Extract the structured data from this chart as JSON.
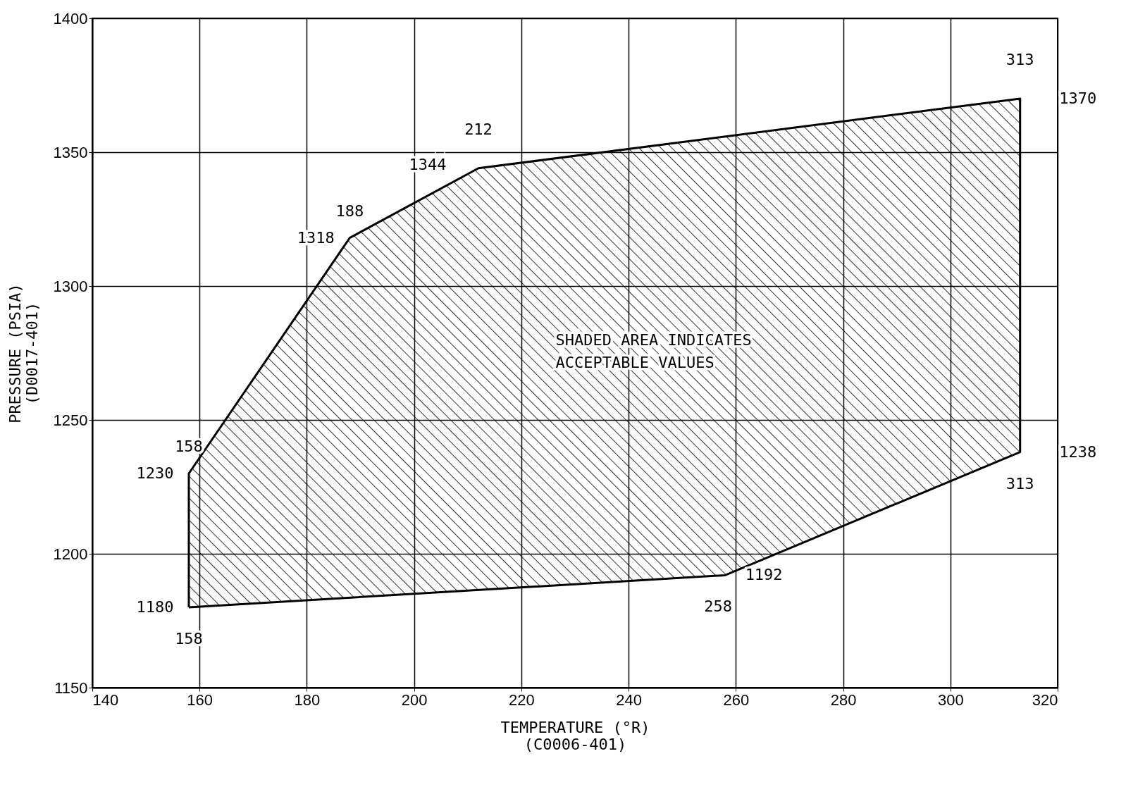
{
  "chart_data": {
    "type": "area",
    "xlabel": "TEMPERATURE (°R)\n(C0006-401)",
    "ylabel": "PRESSURE (PSIA)\n(D0017-401)",
    "series": [
      {
        "color": "#000000",
        "x": [
          158,
          158,
          188,
          212,
          313,
          313,
          258,
          158
        ],
        "values": [
          1180,
          1230,
          1318,
          1344,
          1370,
          1238,
          1192,
          1180
        ]
      }
    ],
    "xlim": [
      140,
      320
    ],
    "xticks": [
      140,
      160,
      180,
      200,
      220,
      240,
      260,
      280,
      300,
      320
    ],
    "ylim": [
      1150,
      1400
    ],
    "yticks": [
      1150,
      1200,
      1250,
      1300,
      1350,
      1400
    ],
    "grid": true,
    "annotations": [
      {
        "text": "158",
        "x": 158,
        "y": 1230
      },
      {
        "text": "1230",
        "x": 158,
        "y": 1230
      },
      {
        "text": "1180",
        "x": 158,
        "y": 1180
      },
      {
        "text": "158",
        "x": 158,
        "y": 1180
      },
      {
        "text": "188",
        "x": 188,
        "y": 1318
      },
      {
        "text": "1318",
        "x": 188,
        "y": 1318
      },
      {
        "text": "212",
        "x": 212,
        "y": 1344
      },
      {
        "text": "1344",
        "x": 212,
        "y": 1344
      },
      {
        "text": "313",
        "x": 313,
        "y": 1370
      },
      {
        "text": "1370",
        "x": 313,
        "y": 1370
      },
      {
        "text": "1238",
        "x": 313,
        "y": 1238
      },
      {
        "text": "313",
        "x": 313,
        "y": 1238
      },
      {
        "text": "1192",
        "x": 258,
        "y": 1192
      },
      {
        "text": "258",
        "x": 258,
        "y": 1192
      },
      "SHADED AREA INDICATES\nACCEPTABLE VALUES"
    ]
  }
}
